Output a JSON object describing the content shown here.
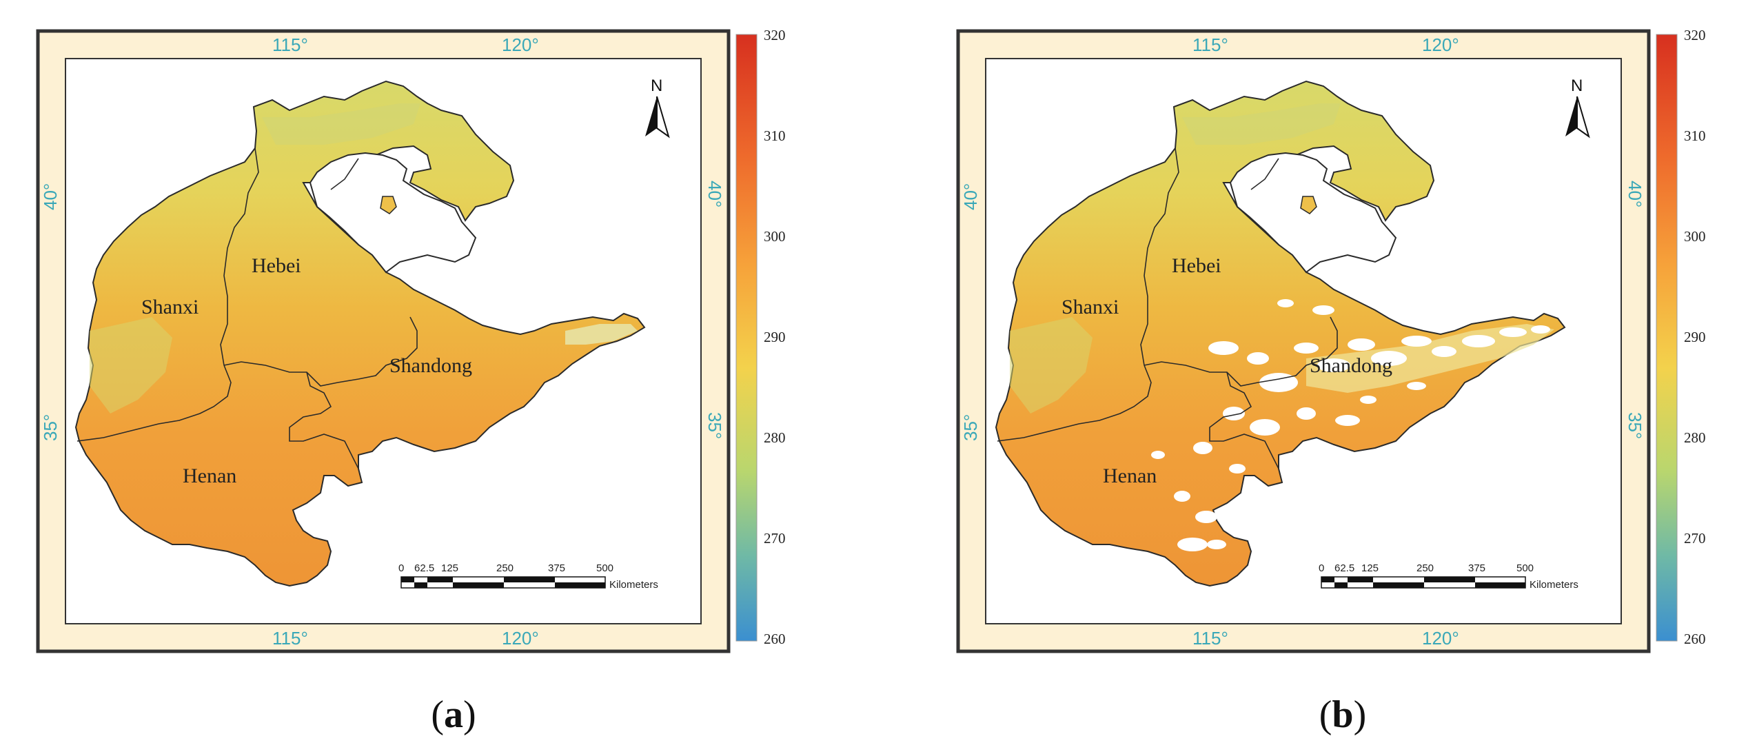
{
  "panels": [
    {
      "id": "a",
      "caption_open": "(",
      "caption_letter": "a",
      "caption_close": ")",
      "longitudes": [
        "115°",
        "120°"
      ],
      "latitudes": [
        "40°",
        "35°"
      ],
      "regions": [
        "Shanxi",
        "Hebei",
        "Shandong",
        "Henan"
      ],
      "north_label": "N",
      "scale_ticks": [
        "0",
        "62.5",
        "125",
        "250",
        "375",
        "500"
      ],
      "scale_unit": "Kilometers",
      "colorbar_ticks": [
        "320",
        "310",
        "300",
        "290",
        "280",
        "270",
        "260"
      ],
      "has_gaps": false
    },
    {
      "id": "b",
      "caption_open": "(",
      "caption_letter": "b",
      "caption_close": ")",
      "longitudes": [
        "115°",
        "120°"
      ],
      "latitudes": [
        "40°",
        "35°"
      ],
      "regions": [
        "Shanxi",
        "Hebei",
        "Shandong",
        "Henan"
      ],
      "north_label": "N",
      "scale_ticks": [
        "0",
        "62.5",
        "125",
        "250",
        "375",
        "500"
      ],
      "scale_unit": "Kilometers",
      "colorbar_ticks": [
        "320",
        "310",
        "300",
        "290",
        "280",
        "270",
        "260"
      ],
      "has_gaps": true
    }
  ],
  "colors": {
    "frame_fill": "#fdf1d4",
    "colorbar_top": "#d7301f",
    "colorbar_mid": "#f7c948",
    "colorbar_low": "#9fcf9a",
    "colorbar_bottom": "#3b8fd0",
    "land_warm": "#f0a33a",
    "land_cool": "#e9d25a",
    "coord_label": "#3aa8b8"
  }
}
